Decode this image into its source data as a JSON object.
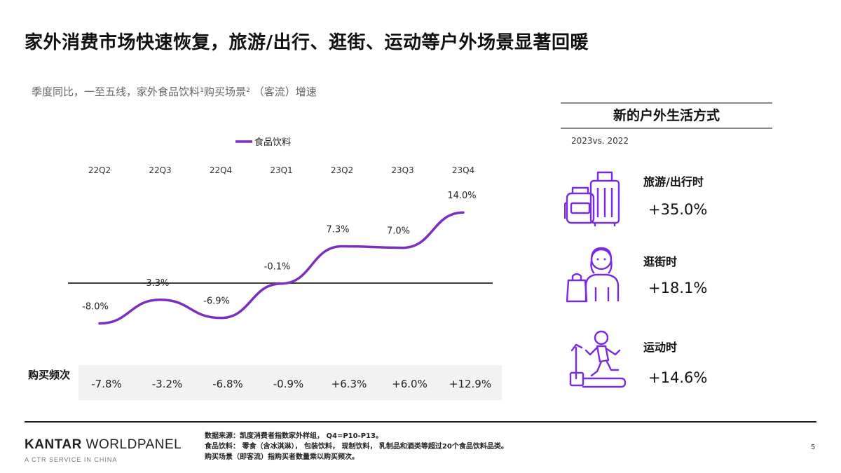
{
  "page": {
    "title": "家外消费市场快速恢复，旅游/出行、逛街、运动等户外场景显著回暖",
    "subtitle": "季度同比，一至五线，家外食品饮料¹购买场景² （客流）增速",
    "page_number": "5"
  },
  "colors": {
    "line": "#7b2fbe",
    "icon": "#7a2ae0",
    "axis": "#222222",
    "band": "#f2f2f2"
  },
  "chart_data": {
    "type": "line",
    "categories": [
      "22Q2",
      "22Q3",
      "22Q4",
      "23Q1",
      "23Q2",
      "23Q3",
      "23Q4"
    ],
    "series": [
      {
        "name": "食品饮料",
        "values": [
          -8.0,
          -3.3,
          -6.9,
          -0.1,
          7.3,
          7.0,
          14.0
        ],
        "labels": [
          "-8.0%",
          "-3.3%",
          "-6.9%",
          "-0.1%",
          "7.3%",
          "7.0%",
          "14.0%"
        ]
      }
    ],
    "baseline": 0,
    "legend": "top-center",
    "grid": false
  },
  "frequency_row": {
    "label": "购买频次",
    "values": [
      "-7.8%",
      "-3.2%",
      "-6.8%",
      "-0.9%",
      "+6.3%",
      "+6.0%",
      "+12.9%"
    ]
  },
  "lifestyle": {
    "title": "新的户外生活方式",
    "period": "2023vs. 2022",
    "items": [
      {
        "label": "旅游/出行时",
        "value": "+35.0%",
        "icon": "luggage-icon"
      },
      {
        "label": "逛街时",
        "value": "+18.1%",
        "icon": "shopping-icon"
      },
      {
        "label": "运动时",
        "value": "+14.6%",
        "icon": "treadmill-icon"
      }
    ]
  },
  "footer": {
    "brand_bold": "KANTAR",
    "brand_rest": " WORLDPANEL",
    "brand_sub": "A CTR SERVICE IN CHINA",
    "notes": [
      "数据来源：凯度消费者指数家外样组， Q4=P10-P13。",
      "食品饮料： 零食（含冰淇淋）， 包装饮料， 现制饮料， 乳制品和酒类等超过20个食品饮料品类。",
      "购买场景（即客流）指购买者数量乘以购买频次。"
    ]
  }
}
